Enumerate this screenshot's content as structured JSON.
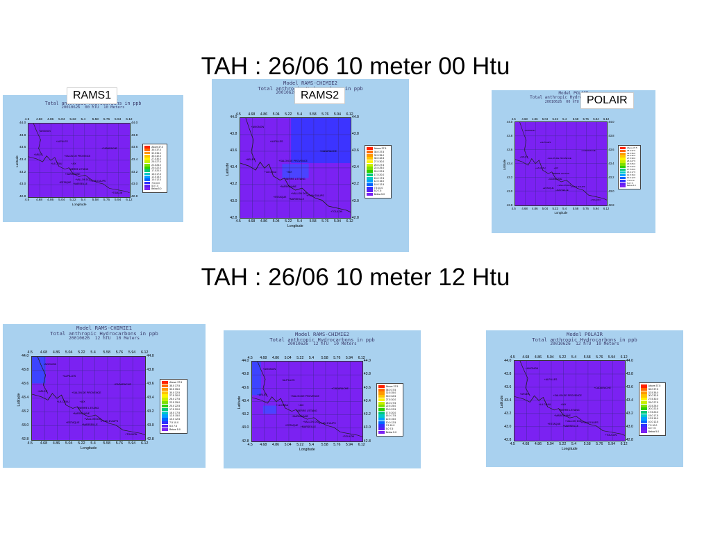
{
  "headings": {
    "top": "TAH : 26/06 10 meter 00 Htu",
    "bottom": "TAH : 26/06 10 meter 12 Htu"
  },
  "tags": {
    "rams1": "RAMS1",
    "rams2": "RAMS2",
    "polair": "POLAIR"
  },
  "common": {
    "xticks": [
      "4.5",
      "4.68",
      "4.86",
      "5.04",
      "5.22",
      "5.4",
      "5.58",
      "5.76",
      "5.94",
      "6.12"
    ],
    "yticks": [
      "44.0",
      "43.8",
      "43.6",
      "43.4",
      "43.2",
      "43.0",
      "42.8"
    ],
    "xlabel": "Longitude",
    "ylabel": "Latitude",
    "legend": [
      "Above 37.5",
      "35.0 37.5",
      "32.5 35.0",
      "30.0 32.5",
      "27.5 30.0",
      "25.0 27.5",
      "22.5 25.0",
      "20.0 22.5",
      "17.5 20.0",
      "15.0 17.5",
      "12.5 15.0",
      "10.0 12.5",
      "7.5 10.0",
      "5.0 7.5",
      "Below 5.0"
    ],
    "legend_colors": [
      "#ff2200",
      "#ff6a00",
      "#ff9900",
      "#ffc400",
      "#fff200",
      "#c8f000",
      "#7fe000",
      "#2ed000",
      "#00c87a",
      "#00c8c8",
      "#00a0ff",
      "#0064ff",
      "#3030ff",
      "#5a1ef5",
      "#7b22f2"
    ],
    "cities": [
      "AVIGNON",
      "ALPILLES",
      "ARLES",
      "SALON DE PROVENCE",
      "CADARACHE",
      "LA CRAU",
      "AIX",
      "BERRE L'ETANG",
      "MARIGNANE",
      "ESTAQUE",
      "VALLON DOL",
      "MARSEILLE",
      "PLAN D'AUPS",
      "TOULON"
    ]
  },
  "panels": [
    {
      "id": "rams1-00",
      "line1": "Model RAMS-CHIMIE1",
      "line2": "Total anthropic Hydrocarbons in ppb",
      "line3": "20010626  00 hTU  10 Meters"
    },
    {
      "id": "rams2-00",
      "line1": "Model RAMS-CHIMIE2",
      "line2": "Total anthropic Hydrocarbons in ppb",
      "line3": "20010626  00 hTU  10 Meters"
    },
    {
      "id": "polair-00",
      "line1": "Model POLAIR",
      "line2": "Total anthropic Hydrocarbons in ppb",
      "line3": "20010626  00 hTU  10 Meters"
    },
    {
      "id": "rams1-12",
      "line1": "Model RAMS-CHIMIE1",
      "line2": "Total anthropic Hydrocarbons in ppb",
      "line3": "20010626  12 hTU  10 Meters"
    },
    {
      "id": "rams2-12",
      "line1": "Model RAMS-CHIMIE2",
      "line2": "Total anthropic Hydrocarbons in ppb",
      "line3": "20010626  12 hTU  10 Meters"
    },
    {
      "id": "polair-12",
      "line1": "Model POLAIR",
      "line2": "Total anthropic Hydrocarbons in ppb",
      "line3": "20010626  12 hTU  10 Meters"
    }
  ]
}
